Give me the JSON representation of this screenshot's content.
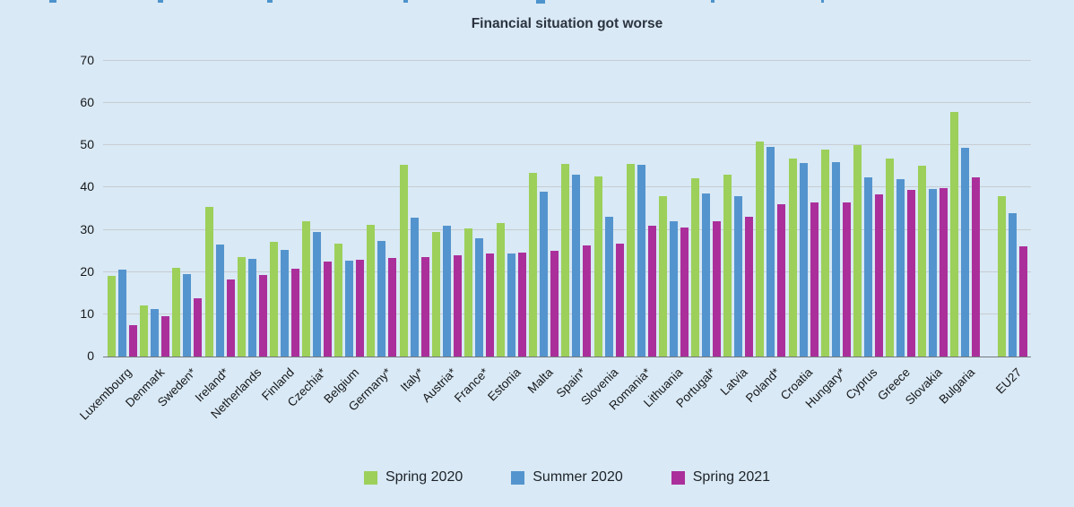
{
  "title": "Financial situation got worse",
  "colors": {
    "background": "#d9e9f5",
    "spring_2020": "#9cd05a",
    "summer_2020": "#5494ce",
    "spring_2021": "#ab2f9b",
    "gridline": "#c7ccd2",
    "axis_line": "#74797e",
    "title_text": "#2b3440"
  },
  "chart_data": {
    "type": "bar",
    "title": "Financial situation got worse",
    "categories": [
      "Luxembourg",
      "Denmark",
      "Sweden*",
      "Ireland*",
      "Netherlands",
      "Finland",
      "Czechia*",
      "Belgium",
      "Germany*",
      "Italy*",
      "Austria*",
      "France*",
      "Estonia",
      "Malta",
      "Spain*",
      "Slovenia",
      "Romania*",
      "Lithuania",
      "Portugal*",
      "Latvia",
      "Poland*",
      "Croatia",
      "Hungary*",
      "Cyprus",
      "Greece",
      "Slovakia",
      "Bulgaria",
      "EU27"
    ],
    "series": [
      {
        "name": "Spring 2020",
        "color": "#9cd05a",
        "values": [
          19.0,
          12.0,
          20.9,
          35.4,
          23.5,
          27.2,
          32.0,
          26.7,
          31.2,
          45.4,
          29.5,
          30.3,
          31.6,
          43.5,
          45.6,
          42.7,
          45.7,
          37.9,
          42.3,
          43.0,
          50.9,
          46.8,
          49.0,
          50.0,
          46.8,
          45.2,
          57.9,
          37.9
        ]
      },
      {
        "name": "Summer 2020",
        "color": "#5494ce",
        "values": [
          20.5,
          11.2,
          19.5,
          26.5,
          23.1,
          25.3,
          29.5,
          22.7,
          27.3,
          32.8,
          31.0,
          27.9,
          24.4,
          39.0,
          43.0,
          33.0,
          45.4,
          32.0,
          38.6,
          38.0,
          49.7,
          45.8,
          46.1,
          42.4,
          42.0,
          39.7,
          49.4,
          33.9
        ]
      },
      {
        "name": "Spring 2021",
        "color": "#ab2f9b",
        "values": [
          7.5,
          9.5,
          13.8,
          18.2,
          19.4,
          20.8,
          22.4,
          23.0,
          23.4,
          23.5,
          24.0,
          24.3,
          24.6,
          25.0,
          26.4,
          26.8,
          30.9,
          30.6,
          32.0,
          33.0,
          36.1,
          36.4,
          36.4,
          38.3,
          39.4,
          39.9,
          42.4,
          26.2
        ]
      }
    ],
    "ylim": [
      0,
      70
    ],
    "yticks": [
      0,
      10,
      20,
      30,
      40,
      50,
      60,
      70
    ],
    "grid": true,
    "legend_position": "bottom"
  },
  "legend": {
    "items": [
      {
        "label": "Spring 2020",
        "color": "#9cd05a"
      },
      {
        "label": "Summer 2020",
        "color": "#5494ce"
      },
      {
        "label": "Spring 2021",
        "color": "#ab2f9b"
      }
    ]
  }
}
